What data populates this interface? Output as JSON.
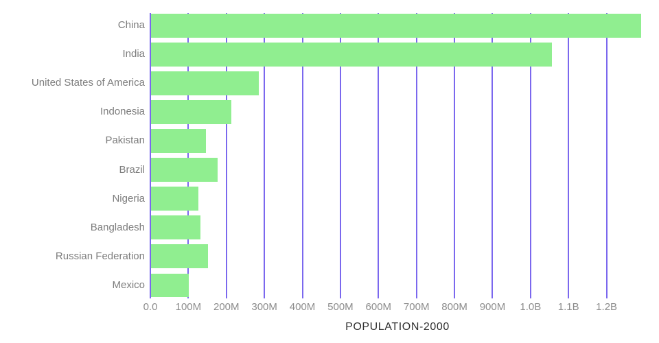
{
  "chart_data": {
    "type": "bar",
    "orientation": "horizontal",
    "title": "",
    "xlabel": "POPULATION-2000",
    "ylabel": "",
    "categories": [
      "China",
      "India",
      "United States of America",
      "Indonesia",
      "Pakistan",
      "Brazil",
      "Nigeria",
      "Bangladesh",
      "Russian Federation",
      "Mexico"
    ],
    "values_millions": [
      1290,
      1055,
      283,
      212,
      145,
      176,
      125,
      130,
      150,
      100
    ],
    "x_axis": {
      "tick_labels": [
        "0.0",
        "100M",
        "200M",
        "300M",
        "400M",
        "500M",
        "600M",
        "700M",
        "800M",
        "900M",
        "1.0B",
        "1.1B",
        "1.2B"
      ],
      "tick_values_millions": [
        0,
        100,
        200,
        300,
        400,
        500,
        600,
        700,
        800,
        900,
        1000,
        1100,
        1200
      ],
      "max_millions": 1300
    },
    "grid": "vertical-only",
    "legend": "none",
    "colors": {
      "bar": "#90ee90",
      "gridline": "#7b68ee",
      "category_label": "#7d7d7d",
      "tick_label": "#8c8c8c",
      "axis_title": "#2f2f2f",
      "background": "#ffffff"
    }
  }
}
